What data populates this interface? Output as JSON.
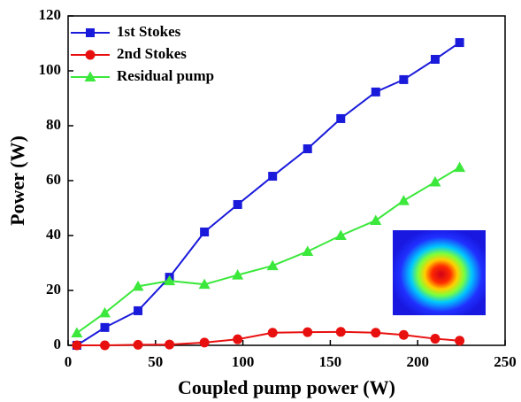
{
  "chart_data": {
    "type": "line",
    "xlabel": "Coupled pump power (W)",
    "ylabel": "Power (W)",
    "x": [
      5,
      21,
      40,
      58,
      78,
      97,
      117,
      137,
      156,
      176,
      192,
      210,
      224
    ],
    "series": [
      {
        "name": "1st Stokes",
        "color": "#1a1adb",
        "marker": "square",
        "values": [
          0,
          6.5,
          12.6,
          24.8,
          41.3,
          51.3,
          61.6,
          71.6,
          82.6,
          92.3,
          96.8,
          104.2,
          110.3
        ]
      },
      {
        "name": "2nd Stokes",
        "color": "#e8100f",
        "marker": "circle",
        "values": [
          0,
          0,
          0.2,
          0.3,
          1.0,
          2.2,
          4.6,
          4.8,
          4.9,
          4.6,
          3.8,
          2.4,
          1.7
        ]
      },
      {
        "name": "Residual pump",
        "color": "#3be83b",
        "marker": "triangle",
        "values": [
          4.5,
          11.8,
          21.5,
          23.5,
          22.2,
          25.6,
          29.0,
          34.2,
          40.0,
          45.5,
          52.7,
          59.5,
          64.8
        ]
      }
    ],
    "xlim": [
      0,
      250
    ],
    "xticks": [
      0,
      50,
      100,
      150,
      200,
      250
    ],
    "ylim": [
      0,
      120
    ],
    "yticks": [
      0,
      20,
      40,
      60,
      80,
      100,
      120
    ],
    "legend": "upper-left"
  }
}
